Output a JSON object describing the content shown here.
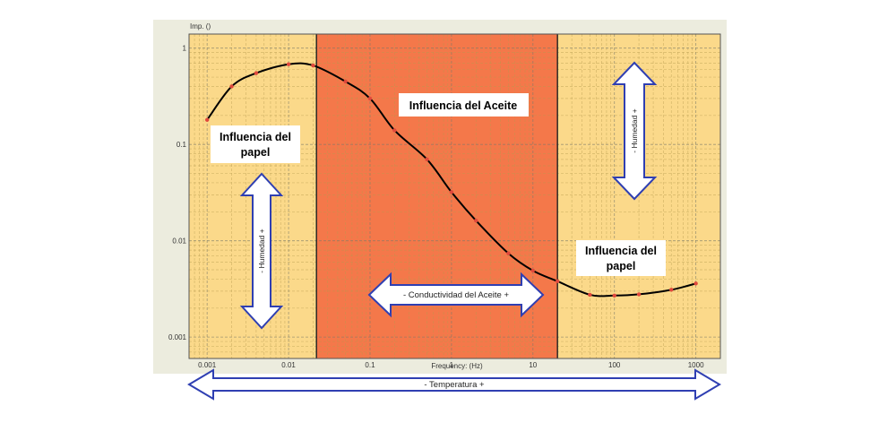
{
  "chart_data": {
    "type": "line",
    "title": "",
    "xlabel": "Frequency: (Hz)",
    "ylabel": "Imp. ()",
    "x_scale": "log",
    "y_scale": "log",
    "xlim": [
      0.0006,
      2000
    ],
    "ylim": [
      0.0006,
      1.4
    ],
    "x_ticks": [
      {
        "value": 0.001,
        "label": "0.001"
      },
      {
        "value": 0.01,
        "label": "0.01"
      },
      {
        "value": 0.1,
        "label": "0.1"
      },
      {
        "value": 1,
        "label": "1"
      },
      {
        "value": 10,
        "label": "10"
      },
      {
        "value": 100,
        "label": "100"
      },
      {
        "value": 1000,
        "label": "1000"
      }
    ],
    "y_ticks": [
      {
        "value": 0.001,
        "label": "0.001"
      },
      {
        "value": 0.01,
        "label": "0.01"
      },
      {
        "value": 0.1,
        "label": "0.1"
      },
      {
        "value": 1,
        "label": "1"
      }
    ],
    "grid": true,
    "series": [
      {
        "color": "#000000",
        "marker_color": "#e0483c",
        "x": [
          0.001,
          0.002,
          0.004,
          0.01,
          0.02,
          0.05,
          0.1,
          0.2,
          0.5,
          1,
          2,
          5,
          10,
          20,
          50,
          100,
          200,
          500,
          1000
        ],
        "y": [
          0.18,
          0.4,
          0.55,
          0.68,
          0.66,
          0.45,
          0.3,
          0.14,
          0.07,
          0.032,
          0.0162,
          0.0074,
          0.0049,
          0.0038,
          0.00275,
          0.0027,
          0.00278,
          0.0031,
          0.0036
        ]
      }
    ],
    "regions": [
      {
        "name": "paper-left",
        "from": 0.0006,
        "to": 0.022,
        "color": "#fbd98a"
      },
      {
        "name": "oil",
        "from": 0.022,
        "to": 20,
        "color": "#f4784a"
      },
      {
        "name": "paper-right",
        "from": 20,
        "to": 2000,
        "color": "#fbd98a"
      }
    ],
    "annotations": {
      "paper_left": [
        "Influencia del",
        "papel"
      ],
      "oil": "Influencia del Aceite",
      "paper_right": [
        "Influencia del",
        "papel"
      ],
      "humidity_left": "- Humedad +",
      "humidity_right": "- Humedad +",
      "oil_conductivity": "- Conductividad del Aceite +",
      "temperature": "- Temperatura +"
    },
    "colors": {
      "plot_frame": "#ececde",
      "arrow_stroke": "#2f3fb2",
      "arrow_fill": "#ffffff",
      "grid_major": "#7a7a6a",
      "grid_minor": "#b59a4e"
    }
  }
}
